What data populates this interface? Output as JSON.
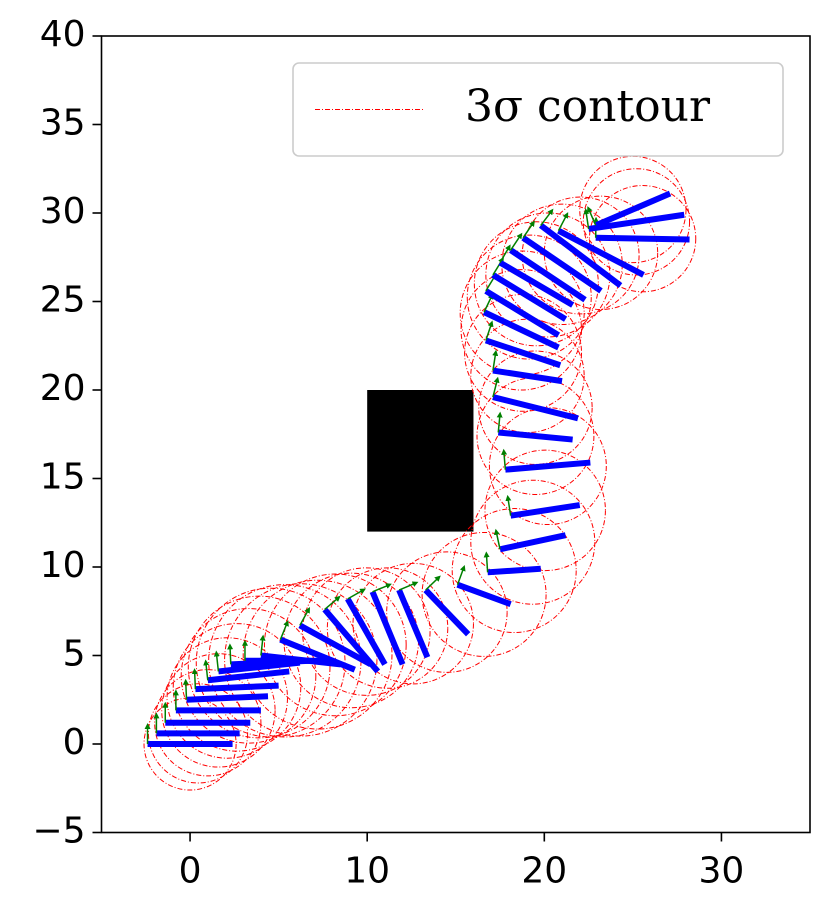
{
  "chart_data": {
    "type": "pose",
    "xlim": [
      -5,
      35
    ],
    "ylim": [
      -5,
      40
    ],
    "xticks": [
      0,
      10,
      20,
      30
    ],
    "yticks": [
      {
        "value": -5,
        "label": "−5"
      },
      0,
      5,
      10,
      15,
      20,
      25,
      30,
      35,
      40
    ],
    "legend": "upper right",
    "obstacle": {
      "x": [
        10,
        16
      ],
      "y": [
        12,
        20
      ],
      "color": "#000000"
    },
    "poses": {
      "color": "#0000ff",
      "arrow_color": "#008000",
      "x": [
        -2.4,
        -1.9,
        -1.4,
        -0.8,
        -0.2,
        0.3,
        1.0,
        1.6,
        2.3,
        3.1,
        4.0,
        5.1,
        6.2,
        7.6,
        8.9,
        10.3,
        11.8,
        13.3,
        15.1,
        16.8,
        17.5,
        18.1,
        17.8,
        17.4,
        17.1,
        17.1,
        16.7,
        16.6,
        16.7,
        17.1,
        17.5,
        18.1,
        18.8,
        19.8,
        20.8,
        22.9,
        22.5,
        22.9
      ],
      "y": [
        0,
        0.6,
        1.2,
        1.9,
        2.5,
        3.1,
        3.6,
        4.1,
        4.5,
        4.7,
        5.0,
        5.9,
        6.7,
        7.6,
        8.2,
        8.6,
        8.7,
        8.7,
        9.0,
        9.7,
        11.0,
        12.9,
        15.5,
        17.6,
        19.6,
        21.1,
        22.8,
        24.4,
        25.6,
        26.5,
        27.2,
        27.9,
        28.6,
        29.3,
        29.0,
        28.6,
        29.1,
        29.3
      ],
      "x2": [
        2.4,
        2.8,
        3.4,
        4.0,
        4.4,
        5.0,
        5.6,
        6.2,
        6.8,
        7.6,
        8.5,
        9.3,
        10.2,
        10.6,
        11.0,
        12.0,
        13.4,
        15.7,
        18.1,
        19.8,
        21.2,
        22.0,
        22.6,
        21.6,
        21.9,
        21.0,
        20.9,
        20.8,
        20.8,
        21.2,
        21.6,
        22.3,
        23.2,
        24.3,
        25.6,
        28.2,
        27.9,
        27.1
      ],
      "y2": [
        0,
        0.6,
        1.2,
        1.9,
        2.7,
        3.3,
        4.1,
        4.6,
        4.7,
        4.7,
        4.5,
        4.2,
        4.5,
        4.1,
        4.5,
        4.5,
        4.9,
        6.2,
        7.9,
        9.9,
        11.8,
        13.5,
        15.9,
        17.2,
        18.4,
        20.5,
        21.4,
        22.4,
        23.1,
        24.0,
        24.8,
        25.1,
        25.6,
        25.9,
        26.5,
        28.5,
        29.9,
        31.1
      ]
    },
    "series": [
      {
        "name": "3σ contour",
        "color": "#ff0000",
        "radius": [
          2.6,
          2.8,
          3.0,
          3.2,
          3.4,
          3.6,
          3.8,
          4.0,
          4.2,
          4.3,
          4.3,
          4.2,
          4.0,
          3.8,
          3.6,
          3.4,
          3.4,
          3.4,
          3.5,
          3.5,
          3.5,
          3.4,
          3.3,
          3.3,
          3.2,
          3.2,
          3.3,
          3.4,
          3.5,
          3.5,
          3.5,
          3.5,
          3.4,
          3.3,
          3.2,
          3.0,
          3.0,
          3.0
        ]
      }
    ]
  }
}
